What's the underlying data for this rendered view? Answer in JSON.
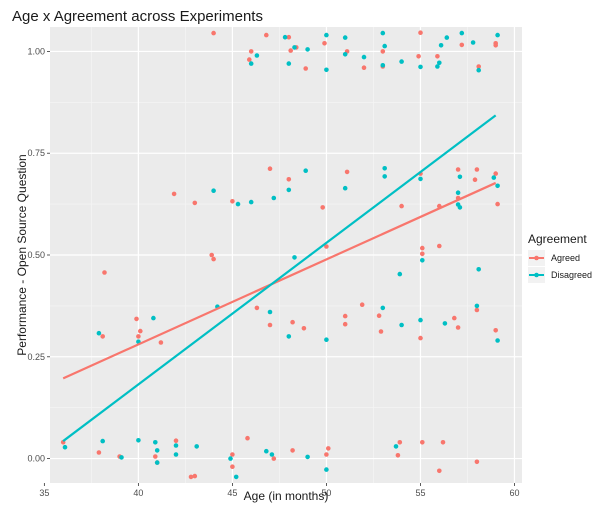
{
  "chart_data": {
    "type": "scatter",
    "title": "Age x Agreement across Experiments",
    "xlabel": "Age (in months)",
    "ylabel": "Performance - Open Source Question",
    "xlim": [
      35.3,
      60.4
    ],
    "ylim": [
      -0.06,
      1.06
    ],
    "x_ticks": [
      35,
      40,
      45,
      50,
      55,
      60
    ],
    "x_tick_labels": [
      "35",
      "40",
      "45",
      "50",
      "55",
      "60"
    ],
    "y_ticks": [
      0,
      0.25,
      0.5,
      0.75,
      1
    ],
    "y_tick_labels": [
      "0.00",
      "0.25",
      "0.50",
      "0.75",
      "1.00"
    ],
    "grid": true,
    "background": "#ebebeb",
    "legend": {
      "title": "Agreement",
      "position": "right"
    },
    "series": [
      {
        "name": "Agreed",
        "color": "#f8766d",
        "trend": {
          "x": [
            36,
            59
          ],
          "y": [
            0.197,
            0.677
          ]
        },
        "points": [
          [
            36,
            0.04
          ],
          [
            37.9,
            0.015
          ],
          [
            38.1,
            0.3
          ],
          [
            38.2,
            0.457
          ],
          [
            39,
            0.005
          ],
          [
            39.9,
            0.343
          ],
          [
            40,
            0.3
          ],
          [
            40.1,
            0.313
          ],
          [
            40.9,
            0.005
          ],
          [
            41,
            -0.01
          ],
          [
            41.2,
            0.285
          ],
          [
            42,
            0.044
          ],
          [
            41.9,
            0.65
          ],
          [
            42.8,
            -0.045
          ],
          [
            43,
            0.628
          ],
          [
            43,
            -0.043
          ],
          [
            43.9,
            0.5
          ],
          [
            44,
            0.49
          ],
          [
            44,
            1.045
          ],
          [
            45,
            0.632
          ],
          [
            45,
            0.01
          ],
          [
            45,
            -0.02
          ],
          [
            45.8,
            0.05
          ],
          [
            46,
            1.0
          ],
          [
            45.9,
            0.98
          ],
          [
            46.3,
            0.37
          ],
          [
            46.8,
            1.04
          ],
          [
            47,
            0.712
          ],
          [
            47,
            0.328
          ],
          [
            47.2,
            0.0
          ],
          [
            48,
            0.686
          ],
          [
            48,
            1.035
          ],
          [
            48.1,
            1.002
          ],
          [
            48.2,
            0.02
          ],
          [
            48.2,
            0.335
          ],
          [
            48.4,
            1.01
          ],
          [
            48.9,
            0.958
          ],
          [
            48.8,
            0.32
          ],
          [
            49.8,
            0.617
          ],
          [
            49.9,
            1.02
          ],
          [
            50,
            0.521
          ],
          [
            50,
            0.01
          ],
          [
            50.1,
            0.025
          ],
          [
            51.1,
            0.704
          ],
          [
            51,
            0.35
          ],
          [
            51,
            0.33
          ],
          [
            51.1,
            1.0
          ],
          [
            51.9,
            0.378
          ],
          [
            52,
            0.96
          ],
          [
            52.8,
            0.351
          ],
          [
            52.9,
            0.312
          ],
          [
            53,
            1.0
          ],
          [
            53,
            0.963
          ],
          [
            53.9,
            0.04
          ],
          [
            54,
            0.62
          ],
          [
            53.8,
            0.008
          ],
          [
            55,
            0.7
          ],
          [
            55,
            0.296
          ],
          [
            55.1,
            0.517
          ],
          [
            55.1,
            0.503
          ],
          [
            55,
            1.046
          ],
          [
            54.9,
            0.988
          ],
          [
            55.1,
            0.04
          ],
          [
            56,
            0.522
          ],
          [
            56,
            0.62
          ],
          [
            55.9,
            0.988
          ],
          [
            56,
            -0.03
          ],
          [
            56.2,
            0.04
          ],
          [
            56.8,
            0.345
          ],
          [
            57,
            0.322
          ],
          [
            57,
            0.71
          ],
          [
            57,
            0.64
          ],
          [
            57.2,
            1.016
          ],
          [
            57.9,
            0.685
          ],
          [
            58,
            0.365
          ],
          [
            58,
            0.71
          ],
          [
            58,
            -0.008
          ],
          [
            58.1,
            0.963
          ],
          [
            59,
            0.7
          ],
          [
            59,
            1.02
          ],
          [
            59,
            0.315
          ],
          [
            59.1,
            0.625
          ],
          [
            59,
            1.015
          ]
        ]
      },
      {
        "name": "Disagreed",
        "color": "#00bfc4",
        "trend": {
          "x": [
            36,
            59
          ],
          "y": [
            0.043,
            0.843
          ]
        },
        "points": [
          [
            36.1,
            0.028
          ],
          [
            37.9,
            0.308
          ],
          [
            38.1,
            0.043
          ],
          [
            39.1,
            0.003
          ],
          [
            40,
            0.045
          ],
          [
            40,
            0.287
          ],
          [
            40.8,
            0.345
          ],
          [
            40.9,
            0.04
          ],
          [
            41,
            0.02
          ],
          [
            41,
            -0.01
          ],
          [
            42,
            0.032
          ],
          [
            42,
            0.01
          ],
          [
            43.1,
            0.03
          ],
          [
            44,
            0.658
          ],
          [
            44.2,
            0.373
          ],
          [
            44.9,
            0.0
          ],
          [
            45.2,
            -0.045
          ],
          [
            45.3,
            0.625
          ],
          [
            46,
            0.97
          ],
          [
            46.3,
            0.99
          ],
          [
            46,
            0.63
          ],
          [
            46.8,
            0.018
          ],
          [
            47,
            0.36
          ],
          [
            47.1,
            0.01
          ],
          [
            47.2,
            0.64
          ],
          [
            48,
            0.97
          ],
          [
            47.8,
            1.035
          ],
          [
            48,
            0.66
          ],
          [
            48,
            0.3
          ],
          [
            48.3,
            0.494
          ],
          [
            48.3,
            1.01
          ],
          [
            49,
            1.005
          ],
          [
            48.9,
            0.707
          ],
          [
            49,
            0.004
          ],
          [
            50,
            0.292
          ],
          [
            50,
            1.04
          ],
          [
            50,
            0.955
          ],
          [
            50,
            -0.027
          ],
          [
            51,
            0.664
          ],
          [
            51,
            0.993
          ],
          [
            51,
            1.034
          ],
          [
            52,
            0.986
          ],
          [
            53,
            1.045
          ],
          [
            53,
            0.966
          ],
          [
            53.1,
            0.713
          ],
          [
            53,
            0.37
          ],
          [
            53.1,
            0.693
          ],
          [
            53.1,
            1.013
          ],
          [
            53.7,
            0.03
          ],
          [
            54,
            0.975
          ],
          [
            53.9,
            0.453
          ],
          [
            54,
            0.328
          ],
          [
            55,
            0.687
          ],
          [
            55,
            0.34
          ],
          [
            55.1,
            0.487
          ],
          [
            55,
            0.962
          ],
          [
            56,
            0.972
          ],
          [
            55.9,
            0.963
          ],
          [
            56.1,
            1.015
          ],
          [
            56.3,
            0.332
          ],
          [
            56.4,
            1.034
          ],
          [
            57,
            0.624
          ],
          [
            57,
            0.653
          ],
          [
            57.1,
            0.617
          ],
          [
            57.1,
            0.692
          ],
          [
            57.2,
            1.045
          ],
          [
            57.8,
            1.022
          ],
          [
            58,
            0.375
          ],
          [
            58.1,
            0.465
          ],
          [
            58.1,
            0.954
          ],
          [
            58.9,
            0.69
          ],
          [
            59.1,
            0.29
          ],
          [
            59.1,
            0.67
          ],
          [
            59.1,
            1.04
          ]
        ]
      }
    ]
  }
}
